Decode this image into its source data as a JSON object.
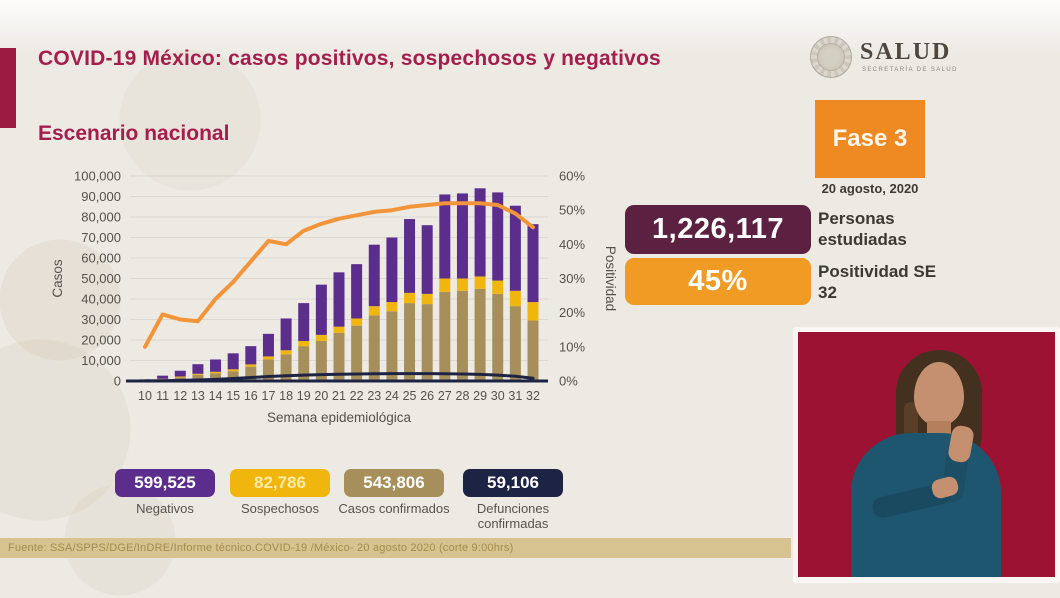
{
  "header": {
    "title": "COVID-19 México: casos positivos, sospechosos y negativos",
    "subtitle": "Escenario nacional"
  },
  "logo": {
    "wordmark": "SALUD",
    "caption": "SECRETARÍA DE SALUD"
  },
  "status": {
    "phase_label": "Fase 3",
    "date": "20 agosto, 2020",
    "stats": [
      {
        "value": "1,226,117",
        "label": "Personas estudiadas",
        "color": "#5c2040"
      },
      {
        "value": "45%",
        "label": "Positividad SE 32",
        "color": "#f09c24"
      }
    ]
  },
  "legend": {
    "items": [
      {
        "value": "599,525",
        "label": "Negativos",
        "color": "#5b2d8c"
      },
      {
        "value": "82,786",
        "label": "Sospechosos",
        "color": "#f1b60e"
      },
      {
        "value": "543,806",
        "label": "Casos confirmados",
        "color": "#a78f5c"
      },
      {
        "value": "59,106",
        "label": "Defunciones confirmadas",
        "color": "#1d2443"
      }
    ]
  },
  "source": {
    "text": "Fuente: SSA/SPPS/DGE/InDRE/Informe técnico.COVID-19 /México- 20 agosto 2020 (corte 9:00hrs)"
  },
  "chart_data": {
    "type": "bar",
    "subtype": "stacked-bars-with-lines",
    "title": "",
    "xlabel": "Semana epidemiológica",
    "ylabel_left": "Casos",
    "ylabel_right": "Positividad",
    "ylim_left": [
      0,
      100000
    ],
    "ylim_right_pct": [
      0,
      60
    ],
    "grid": true,
    "x": [
      10,
      11,
      12,
      13,
      14,
      15,
      16,
      17,
      18,
      19,
      20,
      21,
      22,
      23,
      24,
      25,
      26,
      27,
      28,
      29,
      30,
      31,
      32
    ],
    "yticks_left": [
      "0",
      "10,000",
      "20,000",
      "30,000",
      "40,000",
      "50,000",
      "60,000",
      "70,000",
      "80,000",
      "90,000",
      "100,000"
    ],
    "yticks_right": [
      "0%",
      "10%",
      "20%",
      "30%",
      "40%",
      "50%",
      "60%"
    ],
    "series": [
      {
        "name": "Casos confirmados",
        "type": "bar-segment",
        "axis": "left",
        "color": "#a78f5c",
        "values": [
          300,
          900,
          1800,
          3000,
          3800,
          4800,
          7000,
          10500,
          13000,
          17000,
          19500,
          23500,
          27000,
          32000,
          34000,
          38000,
          37500,
          43500,
          44000,
          45000,
          42500,
          36500,
          29500
        ]
      },
      {
        "name": "Sospechosos",
        "type": "bar-segment",
        "axis": "left",
        "color": "#f1b60e",
        "values": [
          100,
          200,
          400,
          500,
          700,
          900,
          1100,
          1500,
          2000,
          2500,
          3000,
          3000,
          3500,
          4500,
          4500,
          5000,
          5000,
          6500,
          6000,
          6000,
          6500,
          7500,
          9000
        ]
      },
      {
        "name": "Negativos",
        "type": "bar-segment",
        "axis": "left",
        "color": "#5b2d8c",
        "values": [
          400,
          1500,
          2800,
          4700,
          6000,
          7800,
          8900,
          11000,
          15500,
          18500,
          24500,
          26500,
          26500,
          30000,
          31500,
          36000,
          33500,
          41000,
          41500,
          43000,
          43000,
          41500,
          38000
        ]
      },
      {
        "name": "Defunciones confirmadas",
        "type": "line",
        "axis": "left",
        "color": "#1d2443",
        "values": [
          50,
          150,
          300,
          500,
          800,
          1200,
          1700,
          2200,
          2600,
          2900,
          3100,
          3300,
          3400,
          3500,
          3600,
          3600,
          3600,
          3500,
          3400,
          3200,
          2900,
          2300,
          1300
        ]
      },
      {
        "name": "Positividad (%)",
        "type": "line",
        "axis": "right",
        "color": "#f2953a",
        "values": [
          10,
          19.5,
          18,
          17.5,
          24,
          29,
          35,
          41,
          40,
          44,
          46,
          47.5,
          48.5,
          49.5,
          50,
          51,
          51.5,
          52,
          52,
          52,
          51.5,
          49,
          45
        ]
      }
    ]
  }
}
